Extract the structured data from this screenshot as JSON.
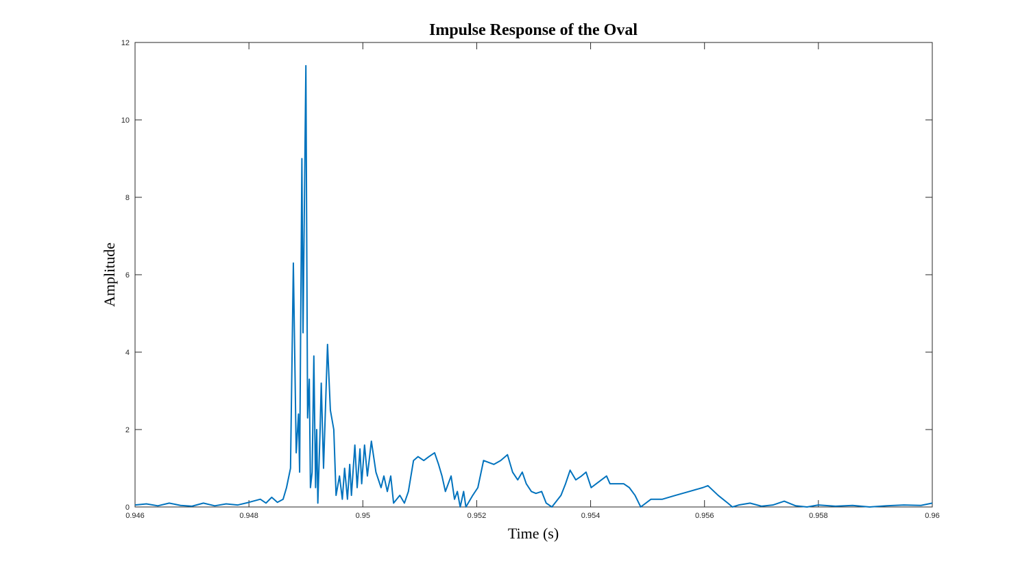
{
  "chart_data": {
    "type": "line",
    "title": "Impulse Response of the Oval",
    "xlabel": "Time (s)",
    "ylabel": "Amplitude",
    "xlim": [
      0.946,
      0.96
    ],
    "xticks": [
      0.946,
      0.948,
      0.95,
      0.952,
      0.954,
      0.956,
      0.958,
      0.96
    ],
    "ylim": [
      0,
      12
    ],
    "yticks": [
      0,
      2,
      4,
      6,
      8,
      10,
      12
    ],
    "series": [
      {
        "color": "#0072bd",
        "x": [
          0.946,
          0.9462,
          0.9464,
          0.9466,
          0.9468,
          0.947,
          0.9472,
          0.9474,
          0.9476,
          0.9478,
          0.948,
          0.9482,
          0.9483,
          0.9484,
          0.9485,
          0.9486,
          0.94866,
          0.94873,
          0.94878,
          0.94883,
          0.94887,
          0.94889,
          0.94893,
          0.94895,
          0.949,
          0.94903,
          0.94906,
          0.94908,
          0.94911,
          0.94914,
          0.94917,
          0.94919,
          0.94921,
          0.94925,
          0.94927,
          0.94931,
          0.94938,
          0.94943,
          0.94949,
          0.94953,
          0.94959,
          0.94964,
          0.94968,
          0.94973,
          0.94977,
          0.9498,
          0.94986,
          0.9499,
          0.94995,
          0.94998,
          0.95003,
          0.95008,
          0.95015,
          0.95023,
          0.95032,
          0.95037,
          0.95043,
          0.95049,
          0.95054,
          0.95065,
          0.95073,
          0.9508,
          0.95089,
          0.95097,
          0.95107,
          0.95116,
          0.95126,
          0.95133,
          0.95139,
          0.95145,
          0.95155,
          0.95161,
          0.95166,
          0.95171,
          0.95177,
          0.95181,
          0.95193,
          0.95202,
          0.95212,
          0.9523,
          0.95242,
          0.95254,
          0.95263,
          0.95272,
          0.9528,
          0.95287,
          0.95296,
          0.95304,
          0.95314,
          0.95322,
          0.95332,
          0.95348,
          0.95356,
          0.95364,
          0.95374,
          0.95384,
          0.95392,
          0.95401,
          0.9541,
          0.95428,
          0.95434,
          0.95458,
          0.95468,
          0.95478,
          0.95488,
          0.95506,
          0.95526,
          0.95549,
          0.95573,
          0.95597,
          0.95606,
          0.95624,
          0.95641,
          0.95649,
          0.9566,
          0.9568,
          0.957,
          0.9572,
          0.9574,
          0.9576,
          0.9578,
          0.958,
          0.9583,
          0.9586,
          0.9589,
          0.9592,
          0.9595,
          0.9598,
          0.96
        ],
        "values": [
          0.05,
          0.08,
          0.03,
          0.1,
          0.04,
          0.02,
          0.1,
          0.03,
          0.08,
          0.05,
          0.12,
          0.2,
          0.1,
          0.25,
          0.12,
          0.2,
          0.5,
          1.0,
          6.3,
          1.4,
          2.4,
          0.9,
          9.0,
          4.5,
          11.4,
          2.3,
          3.3,
          0.5,
          0.9,
          3.9,
          0.5,
          2.0,
          0.1,
          2.0,
          3.2,
          1.0,
          4.2,
          2.5,
          2.0,
          0.3,
          0.8,
          0.2,
          1.0,
          0.2,
          1.1,
          0.3,
          1.6,
          0.5,
          1.5,
          0.6,
          1.6,
          0.8,
          1.7,
          0.9,
          0.5,
          0.8,
          0.4,
          0.8,
          0.1,
          0.3,
          0.1,
          0.4,
          1.2,
          1.3,
          1.2,
          1.3,
          1.4,
          1.1,
          0.8,
          0.4,
          0.8,
          0.2,
          0.4,
          0.0,
          0.4,
          0.0,
          0.3,
          0.5,
          1.2,
          1.1,
          1.2,
          1.35,
          0.9,
          0.7,
          0.9,
          0.6,
          0.4,
          0.35,
          0.4,
          0.1,
          0.0,
          0.3,
          0.6,
          0.95,
          0.7,
          0.8,
          0.9,
          0.5,
          0.6,
          0.8,
          0.6,
          0.6,
          0.5,
          0.3,
          0.0,
          0.2,
          0.2,
          0.3,
          0.4,
          0.5,
          0.55,
          0.3,
          0.1,
          0.0,
          0.05,
          0.1,
          0.02,
          0.05,
          0.15,
          0.03,
          0.0,
          0.05,
          0.02,
          0.04,
          0.0,
          0.03,
          0.05,
          0.04,
          0.1
        ]
      }
    ]
  }
}
